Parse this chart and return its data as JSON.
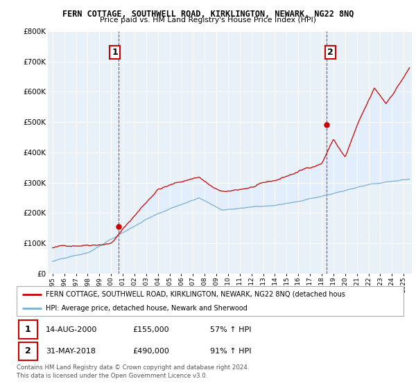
{
  "title1": "FERN COTTAGE, SOUTHWELL ROAD, KIRKLINGTON, NEWARK, NG22 8NQ",
  "title2": "Price paid vs. HM Land Registry's House Price Index (HPI)",
  "legend_label1": "FERN COTTAGE, SOUTHWELL ROAD, KIRKLINGTON, NEWARK, NG22 8NQ (detached hous",
  "legend_label2": "HPI: Average price, detached house, Newark and Sherwood",
  "annotation1_label": "1",
  "annotation1_date": "14-AUG-2000",
  "annotation1_price": "£155,000",
  "annotation1_hpi": "57% ↑ HPI",
  "annotation1_year": 2000.62,
  "annotation1_value": 155000,
  "annotation2_label": "2",
  "annotation2_date": "31-MAY-2018",
  "annotation2_price": "£490,000",
  "annotation2_hpi": "91% ↑ HPI",
  "annotation2_year": 2018.42,
  "annotation2_value": 490000,
  "footer1": "Contains HM Land Registry data © Crown copyright and database right 2024.",
  "footer2": "This data is licensed under the Open Government Licence v3.0.",
  "ylim_min": 0,
  "ylim_max": 800000,
  "red_color": "#cc0000",
  "blue_color": "#7bafd4",
  "fill_color": "#ddeeff",
  "background_color": "#ffffff",
  "grid_color": "#cccccc",
  "title_fontsize": 9,
  "subtitle_fontsize": 8
}
